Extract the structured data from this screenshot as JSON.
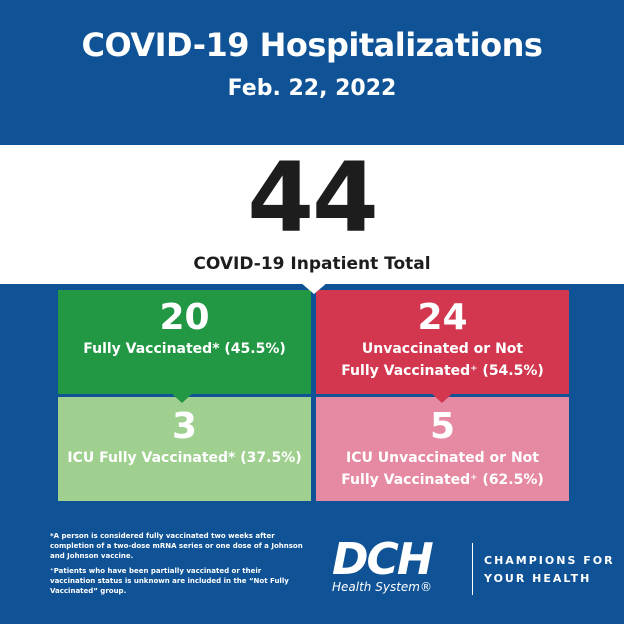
{
  "header": {
    "title": "COVID-19 Hospitalizations",
    "date": "Feb. 22, 2022"
  },
  "total": {
    "value": "44",
    "label": "COVID-19 Inpatient Total"
  },
  "boxes": [
    {
      "value": "20",
      "label": "Fully Vaccinated* (45.5%)",
      "color": "#239844"
    },
    {
      "value": "24",
      "label_line1": "Unvaccinated or Not",
      "label_line2": "Fully Vaccinated⁺ (54.5%)",
      "color": "#d3374f"
    },
    {
      "value": "3",
      "label": "ICU Fully Vaccinated* (37.5%)",
      "color": "#9fd08f"
    },
    {
      "value": "5",
      "label_line1": "ICU Unvaccinated or Not",
      "label_line2": "Fully Vaccinated⁺ (62.5%)",
      "color": "#e68aa3"
    }
  ],
  "footnotes": {
    "note1": "*A person is considered fully vaccinated two weeks after completion of a two-dose mRNA series or one dose of a Johnson and Johnson vaccine.",
    "note2": "⁺Patients who have been partially vaccinated or their vaccination status is unknown are included in the “Not Fully Vaccinated” group."
  },
  "logo": {
    "mark": "DCH",
    "subtitle": "Health System®",
    "tagline_line1": "CHAMPIONS FOR",
    "tagline_line2": "YOUR HEALTH"
  },
  "colors": {
    "background": "#0f5396",
    "band": "#ffffff"
  }
}
